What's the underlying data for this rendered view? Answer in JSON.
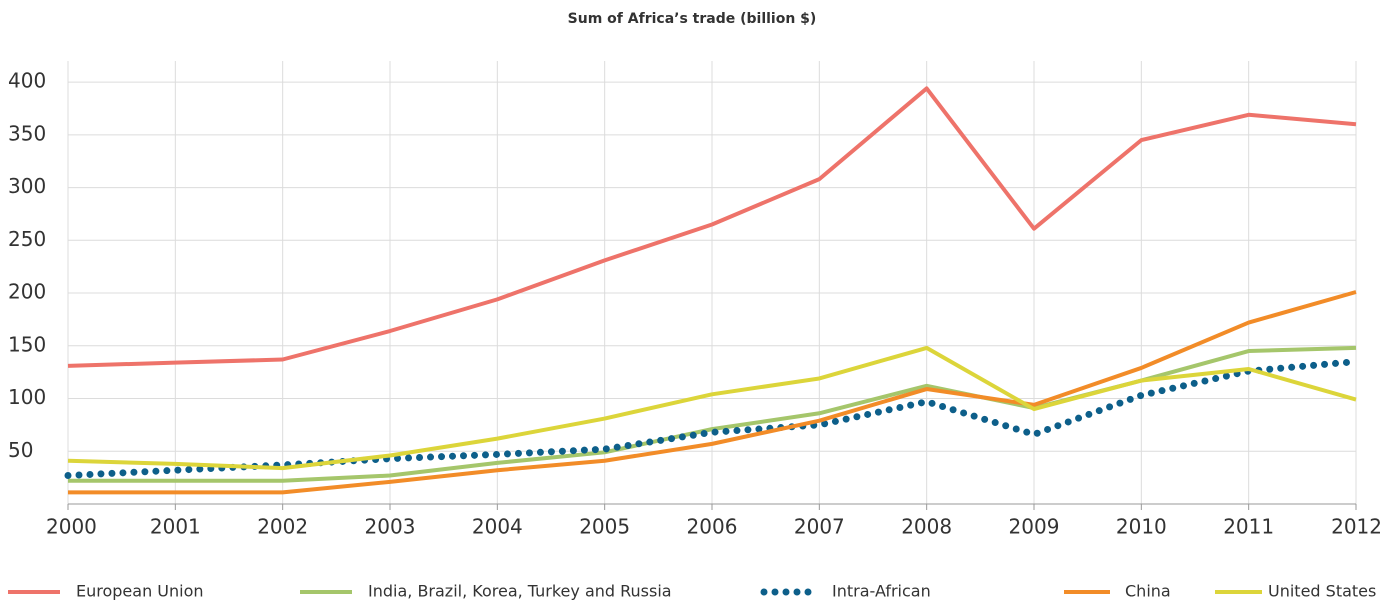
{
  "chart_data": {
    "type": "line",
    "title": "Sum of Africa’s trade (billion $)",
    "categories": [
      "2000",
      "2001",
      "2002",
      "2003",
      "2004",
      "2005",
      "2006",
      "2007",
      "2008",
      "2009",
      "2010",
      "2011",
      "2012"
    ],
    "ylim": [
      0,
      420
    ],
    "yticks": [
      50,
      100,
      150,
      200,
      250,
      300,
      350,
      400
    ],
    "grid": true,
    "legend": "bottom",
    "series": [
      {
        "name": "European Union",
        "color": "#ee736a",
        "values": [
          131,
          134,
          137,
          164,
          194,
          231,
          265,
          308,
          394,
          261,
          345,
          369,
          360
        ]
      },
      {
        "name": "India, Brazil, Korea, Turkey and Russia",
        "color": "#a5c66b",
        "values": [
          22,
          22,
          22,
          27,
          39,
          49,
          71,
          86,
          112,
          91,
          117,
          145,
          148
        ]
      },
      {
        "name": "Intra-African",
        "color": "#0d5f8a",
        "style": "dotted",
        "values": [
          27,
          32,
          37,
          43,
          47,
          52,
          68,
          75,
          97,
          66,
          103,
          126,
          135
        ]
      },
      {
        "name": "China",
        "color": "#f28c28",
        "values": [
          11,
          11,
          11,
          21,
          32,
          41,
          57,
          79,
          109,
          94,
          129,
          172,
          201
        ]
      },
      {
        "name": "United States",
        "color": "#dcd53a",
        "values": [
          41,
          38,
          34,
          46,
          62,
          81,
          104,
          119,
          148,
          90,
          117,
          128,
          99
        ]
      }
    ]
  }
}
